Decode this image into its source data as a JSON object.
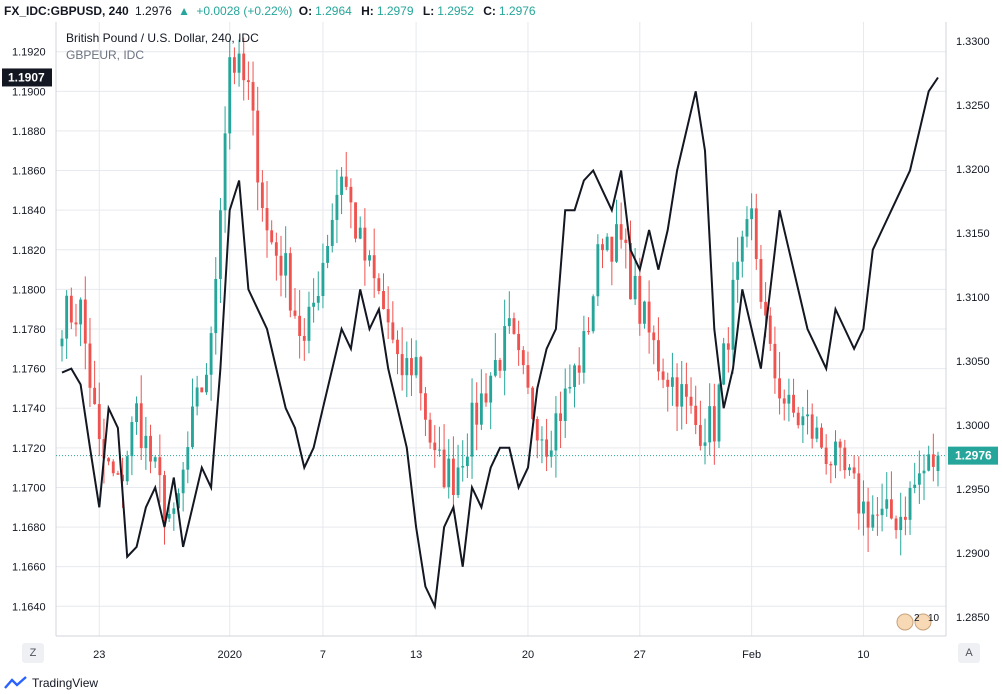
{
  "header": {
    "symbol": "FX_IDC:GBPUSD, 240",
    "last": "1.2976",
    "change": "+0.0028 (+0.22%)",
    "open_label": "O:",
    "open": "1.2964",
    "high_label": "H:",
    "high": "1.2979",
    "low_label": "L:",
    "low": "1.2952",
    "close_label": "C:",
    "close": "1.2976"
  },
  "legend": {
    "main": "British Pound / U.S. Dollar, 240, IDC",
    "compare": "GBPEUR, IDC"
  },
  "footer": {
    "brand": "TradingView"
  },
  "buttons": {
    "left_scale": "Z",
    "right_scale": "A"
  },
  "colors": {
    "up": "#26a69a",
    "down": "#ef5350",
    "compare_line": "#131722",
    "last_price_bg": "#26a69a",
    "compare_label_bg": "#131722"
  },
  "chart_data": [
    {
      "type": "candlestick",
      "series": [
        {
          "name": "British Pound / U.S. Dollar, 240, IDC"
        }
      ],
      "y_axis": "right",
      "ylim": [
        1.2835,
        1.3315
      ],
      "y_ticks": [
        "1.3300",
        "1.3250",
        "1.3200",
        "1.3150",
        "1.3100",
        "1.3050",
        "1.3000",
        "1.2950",
        "1.2900",
        "1.2850"
      ],
      "last_label": "1.2976",
      "x_ticks": [
        "23",
        "2020",
        "7",
        "13",
        "20",
        "27",
        "Feb",
        "10"
      ],
      "x_tick_index": [
        4,
        18,
        28,
        38,
        50,
        62,
        74,
        86
      ],
      "anchors": [
        [
          0,
          1.3085
        ],
        [
          2,
          1.309
        ],
        [
          4,
          1.298
        ],
        [
          6,
          1.295
        ],
        [
          8,
          1.301
        ],
        [
          10,
          1.296
        ],
        [
          12,
          1.292
        ],
        [
          14,
          1.3
        ],
        [
          16,
          1.306
        ],
        [
          17,
          1.318
        ],
        [
          18,
          1.329
        ],
        [
          19,
          1.3275
        ],
        [
          20,
          1.326
        ],
        [
          22,
          1.315
        ],
        [
          24,
          1.312
        ],
        [
          26,
          1.306
        ],
        [
          28,
          1.313
        ],
        [
          30,
          1.32
        ],
        [
          32,
          1.314
        ],
        [
          34,
          1.31
        ],
        [
          35,
          1.308
        ],
        [
          36,
          1.304
        ],
        [
          38,
          1.305
        ],
        [
          40,
          1.297
        ],
        [
          42,
          1.296
        ],
        [
          44,
          1.3
        ],
        [
          46,
          1.304
        ],
        [
          48,
          1.307
        ],
        [
          50,
          1.302
        ],
        [
          52,
          1.299
        ],
        [
          54,
          1.302
        ],
        [
          56,
          1.306
        ],
        [
          58,
          1.315
        ],
        [
          60,
          1.314
        ],
        [
          62,
          1.309
        ],
        [
          64,
          1.305
        ],
        [
          66,
          1.303
        ],
        [
          68,
          1.3
        ],
        [
          70,
          1.3
        ],
        [
          72,
          1.31
        ],
        [
          74,
          1.316
        ],
        [
          76,
          1.305
        ],
        [
          78,
          1.301
        ],
        [
          80,
          1.3
        ],
        [
          82,
          1.298
        ],
        [
          84,
          1.296
        ],
        [
          86,
          1.2935
        ],
        [
          88,
          1.2925
        ],
        [
          90,
          1.293
        ],
        [
          92,
          1.296
        ],
        [
          94,
          1.2976
        ]
      ]
    },
    {
      "type": "line",
      "series": [
        {
          "name": "GBPEUR, IDC"
        }
      ],
      "y_axis": "left",
      "ylim": [
        1.1625,
        1.1935
      ],
      "y_ticks": [
        "1.1920",
        "1.1900",
        "1.1880",
        "1.1860",
        "1.1840",
        "1.1820",
        "1.1800",
        "1.1780",
        "1.1760",
        "1.1740",
        "1.1720",
        "1.1700",
        "1.1680",
        "1.1660",
        "1.1640"
      ],
      "last_label": "1.1907",
      "points": [
        [
          0,
          1.1758
        ],
        [
          1,
          1.176
        ],
        [
          2,
          1.1752
        ],
        [
          3,
          1.172
        ],
        [
          4,
          1.169
        ],
        [
          5,
          1.174
        ],
        [
          6,
          1.173
        ],
        [
          7,
          1.1665
        ],
        [
          8,
          1.167
        ],
        [
          9,
          1.169
        ],
        [
          10,
          1.17
        ],
        [
          11,
          1.168
        ],
        [
          12,
          1.1705
        ],
        [
          13,
          1.167
        ],
        [
          14,
          1.169
        ],
        [
          15,
          1.171
        ],
        [
          16,
          1.17
        ],
        [
          17,
          1.176
        ],
        [
          18,
          1.184
        ],
        [
          19,
          1.1855
        ],
        [
          20,
          1.18
        ],
        [
          21,
          1.179
        ],
        [
          22,
          1.178
        ],
        [
          23,
          1.176
        ],
        [
          24,
          1.174
        ],
        [
          25,
          1.173
        ],
        [
          26,
          1.171
        ],
        [
          27,
          1.172
        ],
        [
          28,
          1.174
        ],
        [
          29,
          1.176
        ],
        [
          30,
          1.178
        ],
        [
          31,
          1.177
        ],
        [
          32,
          1.18
        ],
        [
          33,
          1.178
        ],
        [
          34,
          1.179
        ],
        [
          35,
          1.176
        ],
        [
          36,
          1.174
        ],
        [
          37,
          1.172
        ],
        [
          38,
          1.168
        ],
        [
          39,
          1.165
        ],
        [
          40,
          1.164
        ],
        [
          41,
          1.168
        ],
        [
          42,
          1.169
        ],
        [
          43,
          1.166
        ],
        [
          44,
          1.17
        ],
        [
          45,
          1.169
        ],
        [
          46,
          1.171
        ],
        [
          47,
          1.172
        ],
        [
          48,
          1.172
        ],
        [
          49,
          1.17
        ],
        [
          50,
          1.171
        ],
        [
          51,
          1.175
        ],
        [
          52,
          1.177
        ],
        [
          53,
          1.178
        ],
        [
          54,
          1.184
        ],
        [
          55,
          1.184
        ],
        [
          56,
          1.1855
        ],
        [
          57,
          1.186
        ],
        [
          58,
          1.185
        ],
        [
          59,
          1.184
        ],
        [
          60,
          1.186
        ],
        [
          61,
          1.182
        ],
        [
          62,
          1.181
        ],
        [
          63,
          1.183
        ],
        [
          64,
          1.181
        ],
        [
          65,
          1.183
        ],
        [
          66,
          1.186
        ],
        [
          67,
          1.188
        ],
        [
          68,
          1.19
        ],
        [
          69,
          1.187
        ],
        [
          70,
          1.178
        ],
        [
          71,
          1.174
        ],
        [
          72,
          1.176
        ],
        [
          73,
          1.18
        ],
        [
          74,
          1.178
        ],
        [
          75,
          1.176
        ],
        [
          76,
          1.18
        ],
        [
          77,
          1.184
        ],
        [
          78,
          1.182
        ],
        [
          79,
          1.18
        ],
        [
          80,
          1.178
        ],
        [
          81,
          1.177
        ],
        [
          82,
          1.176
        ],
        [
          83,
          1.179
        ],
        [
          84,
          1.178
        ],
        [
          85,
          1.177
        ],
        [
          86,
          1.178
        ],
        [
          87,
          1.182
        ],
        [
          88,
          1.183
        ],
        [
          89,
          1.184
        ],
        [
          90,
          1.185
        ],
        [
          91,
          1.186
        ],
        [
          92,
          1.188
        ],
        [
          93,
          1.19
        ],
        [
          94,
          1.1907
        ]
      ]
    }
  ]
}
